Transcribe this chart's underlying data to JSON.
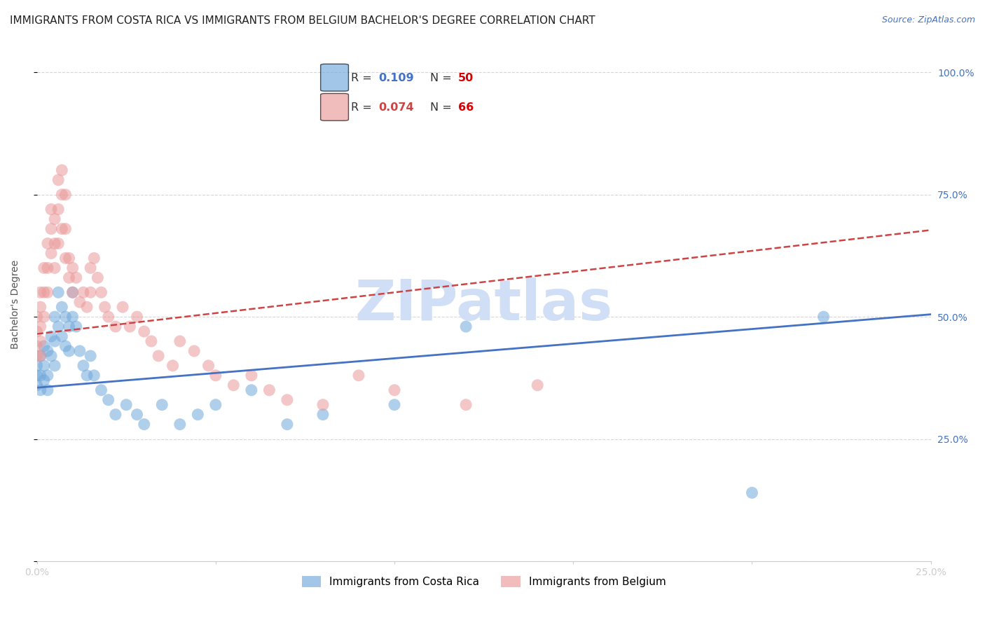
{
  "title": "IMMIGRANTS FROM COSTA RICA VS IMMIGRANTS FROM BELGIUM BACHELOR'S DEGREE CORRELATION CHART",
  "source_text": "Source: ZipAtlas.com",
  "ylabel": "Bachelor's Degree",
  "title_fontsize": 11,
  "source_fontsize": 9,
  "axis_label_color": "#4472c4",
  "background_color": "#ffffff",
  "grid_color": "#cccccc",
  "watermark": "ZIPatlas",
  "watermark_color": "#d0dff5",
  "series1_label": "Immigrants from Costa Rica",
  "series1_color": "#6fa8dc",
  "series1_R": "0.109",
  "series1_N": "50",
  "series1_x": [
    0.0,
    0.0,
    0.0,
    0.001,
    0.001,
    0.001,
    0.002,
    0.002,
    0.002,
    0.003,
    0.003,
    0.003,
    0.004,
    0.004,
    0.005,
    0.005,
    0.005,
    0.006,
    0.006,
    0.007,
    0.007,
    0.008,
    0.008,
    0.009,
    0.009,
    0.01,
    0.01,
    0.011,
    0.012,
    0.013,
    0.014,
    0.015,
    0.016,
    0.018,
    0.02,
    0.022,
    0.025,
    0.028,
    0.03,
    0.035,
    0.04,
    0.045,
    0.05,
    0.06,
    0.07,
    0.08,
    0.1,
    0.12,
    0.2,
    0.22
  ],
  "series1_y": [
    0.36,
    0.4,
    0.38,
    0.42,
    0.38,
    0.35,
    0.44,
    0.4,
    0.37,
    0.43,
    0.38,
    0.35,
    0.46,
    0.42,
    0.5,
    0.45,
    0.4,
    0.55,
    0.48,
    0.52,
    0.46,
    0.5,
    0.44,
    0.48,
    0.43,
    0.55,
    0.5,
    0.48,
    0.43,
    0.4,
    0.38,
    0.42,
    0.38,
    0.35,
    0.33,
    0.3,
    0.32,
    0.3,
    0.28,
    0.32,
    0.28,
    0.3,
    0.32,
    0.35,
    0.28,
    0.3,
    0.32,
    0.48,
    0.14,
    0.5
  ],
  "series2_label": "Immigrants from Belgium",
  "series2_color": "#ea9999",
  "series2_R": "0.074",
  "series2_N": "66",
  "series2_x": [
    0.0,
    0.0,
    0.0,
    0.0,
    0.001,
    0.001,
    0.001,
    0.001,
    0.001,
    0.002,
    0.002,
    0.002,
    0.003,
    0.003,
    0.003,
    0.004,
    0.004,
    0.004,
    0.005,
    0.005,
    0.005,
    0.006,
    0.006,
    0.006,
    0.007,
    0.007,
    0.007,
    0.008,
    0.008,
    0.008,
    0.009,
    0.009,
    0.01,
    0.01,
    0.011,
    0.012,
    0.013,
    0.014,
    0.015,
    0.015,
    0.016,
    0.017,
    0.018,
    0.019,
    0.02,
    0.022,
    0.024,
    0.026,
    0.028,
    0.03,
    0.032,
    0.034,
    0.038,
    0.04,
    0.044,
    0.048,
    0.05,
    0.055,
    0.06,
    0.065,
    0.07,
    0.08,
    0.09,
    0.1,
    0.12,
    0.14
  ],
  "series2_y": [
    0.5,
    0.47,
    0.44,
    0.42,
    0.55,
    0.52,
    0.48,
    0.45,
    0.42,
    0.6,
    0.55,
    0.5,
    0.65,
    0.6,
    0.55,
    0.72,
    0.68,
    0.63,
    0.7,
    0.65,
    0.6,
    0.78,
    0.72,
    0.65,
    0.8,
    0.75,
    0.68,
    0.75,
    0.68,
    0.62,
    0.62,
    0.58,
    0.6,
    0.55,
    0.58,
    0.53,
    0.55,
    0.52,
    0.6,
    0.55,
    0.62,
    0.58,
    0.55,
    0.52,
    0.5,
    0.48,
    0.52,
    0.48,
    0.5,
    0.47,
    0.45,
    0.42,
    0.4,
    0.45,
    0.43,
    0.4,
    0.38,
    0.36,
    0.38,
    0.35,
    0.33,
    0.32,
    0.38,
    0.35,
    0.32,
    0.36
  ],
  "xlim": [
    0.0,
    0.25
  ],
  "ylim": [
    0.0,
    1.05
  ],
  "xticks": [
    0.0,
    0.05,
    0.1,
    0.15,
    0.2,
    0.25
  ],
  "xtick_labels": [
    "0.0%",
    "",
    "",
    "",
    "",
    "25.0%"
  ],
  "ytick_labels_right": [
    "",
    "25.0%",
    "50.0%",
    "75.0%",
    "100.0%"
  ],
  "yticks": [
    0.0,
    0.25,
    0.5,
    0.75,
    1.0
  ],
  "line1_color": "#4472c4",
  "line1_intercept": 0.355,
  "line1_slope": 0.6,
  "line2_color": "#cc4444",
  "line2_intercept": 0.465,
  "line2_slope": 0.85,
  "line2_style": "--"
}
